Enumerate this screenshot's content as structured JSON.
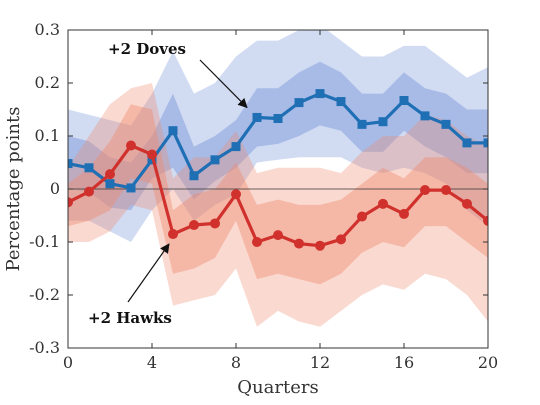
{
  "chart_data": {
    "type": "line",
    "xlabel": "Quarters",
    "ylabel": "Percentage points",
    "xlim": [
      0,
      20
    ],
    "ylim": [
      -0.3,
      0.3
    ],
    "x_ticks": [
      0,
      4,
      8,
      12,
      16,
      20
    ],
    "y_ticks": [
      -0.3,
      -0.2,
      -0.1,
      0,
      0.1,
      0.2,
      0.3
    ],
    "y_tick_labels": [
      "-0.3",
      "-0.2",
      "-0.1",
      "0",
      "0.1",
      "0.2",
      "0.3"
    ],
    "grid": false,
    "zero_line": true,
    "x": [
      0,
      1,
      2,
      3,
      4,
      5,
      6,
      7,
      8,
      9,
      10,
      11,
      12,
      13,
      14,
      15,
      16,
      17,
      18,
      19,
      20
    ],
    "series": [
      {
        "name": "+2 Doves",
        "color": "#1f6fb5",
        "band_color": "#6f8fd8",
        "marker": "square",
        "values": [
          0.048,
          0.04,
          0.01,
          0.002,
          0.055,
          0.11,
          0.025,
          0.055,
          0.08,
          0.135,
          0.133,
          0.163,
          0.18,
          0.165,
          0.122,
          0.127,
          0.167,
          0.138,
          0.122,
          0.087,
          0.087
        ],
        "inner_lower": [
          0.0,
          -0.005,
          -0.035,
          -0.04,
          0.02,
          0.04,
          -0.02,
          0.015,
          0.04,
          0.08,
          0.085,
          0.1,
          0.12,
          0.11,
          0.07,
          0.07,
          0.11,
          0.08,
          0.06,
          0.03,
          0.03
        ],
        "inner_upper": [
          0.1,
          0.09,
          0.06,
          0.05,
          0.1,
          0.18,
          0.08,
          0.1,
          0.13,
          0.19,
          0.19,
          0.22,
          0.24,
          0.22,
          0.18,
          0.18,
          0.22,
          0.19,
          0.18,
          0.15,
          0.15
        ],
        "outer_lower": [
          -0.06,
          -0.06,
          -0.08,
          -0.1,
          -0.04,
          0.0,
          -0.06,
          -0.03,
          -0.01,
          0.05,
          0.055,
          0.06,
          0.06,
          0.06,
          0.04,
          0.03,
          0.04,
          0.03,
          0.01,
          -0.04,
          -0.07
        ],
        "outer_upper": [
          0.15,
          0.14,
          0.13,
          0.12,
          0.18,
          0.26,
          0.18,
          0.2,
          0.25,
          0.28,
          0.28,
          0.3,
          0.31,
          0.28,
          0.25,
          0.25,
          0.27,
          0.27,
          0.24,
          0.21,
          0.23
        ]
      },
      {
        "name": "+2 Hawks",
        "color": "#d0312d",
        "band_color": "#ee8a6e",
        "marker": "circle",
        "values": [
          -0.025,
          -0.005,
          0.028,
          0.082,
          0.065,
          -0.085,
          -0.068,
          -0.065,
          -0.01,
          -0.1,
          -0.087,
          -0.103,
          -0.107,
          -0.095,
          -0.052,
          -0.028,
          -0.047,
          -0.002,
          -0.002,
          -0.028,
          -0.06
        ],
        "inner_lower": [
          -0.07,
          -0.06,
          -0.04,
          0.02,
          0.01,
          -0.16,
          -0.15,
          -0.13,
          -0.06,
          -0.17,
          -0.16,
          -0.17,
          -0.18,
          -0.16,
          -0.12,
          -0.1,
          -0.11,
          -0.07,
          -0.07,
          -0.1,
          -0.13
        ],
        "inner_upper": [
          0.01,
          0.04,
          0.09,
          0.16,
          0.15,
          -0.04,
          -0.01,
          0.0,
          0.05,
          -0.03,
          -0.02,
          -0.03,
          -0.03,
          -0.02,
          0.01,
          0.04,
          0.02,
          0.06,
          0.06,
          0.04,
          0.01
        ],
        "outer_lower": [
          -0.1,
          -0.1,
          -0.08,
          -0.03,
          -0.04,
          -0.22,
          -0.21,
          -0.2,
          -0.15,
          -0.26,
          -0.23,
          -0.25,
          -0.26,
          -0.23,
          -0.2,
          -0.18,
          -0.19,
          -0.16,
          -0.17,
          -0.2,
          -0.25
        ],
        "outer_upper": [
          0.04,
          0.1,
          0.16,
          0.19,
          0.2,
          0.02,
          0.06,
          0.06,
          0.11,
          0.03,
          0.04,
          0.04,
          0.04,
          0.03,
          0.07,
          0.1,
          0.1,
          0.14,
          0.13,
          0.1,
          0.08
        ]
      }
    ],
    "annotations": [
      {
        "text": "+2 Doves",
        "series": "+2 Doves",
        "arrow_to": [
          9,
          0.135
        ]
      },
      {
        "text": "+2 Hawks",
        "series": "+2 Hawks",
        "arrow_to": [
          5,
          -0.085
        ]
      }
    ]
  }
}
